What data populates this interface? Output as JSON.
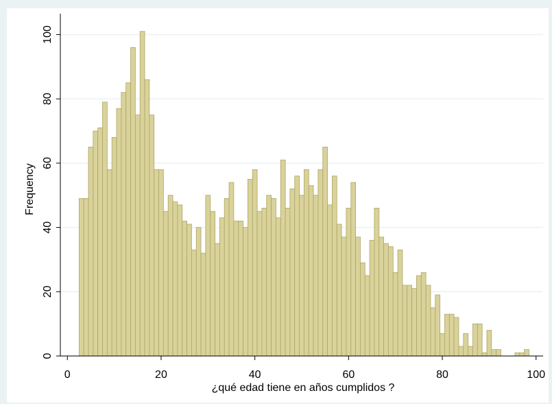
{
  "chart_data": {
    "type": "histogram",
    "xlabel": "¿qué edad tiene en años cumplidos ?",
    "ylabel": "Frequency",
    "bins": [
      2.5,
      3.5,
      4.5,
      5.5,
      6.5,
      7.5,
      8.5,
      9.5,
      10.5,
      11.5,
      12.5,
      13.5,
      14.5,
      15.5,
      16.5,
      17.5,
      18.5,
      19.5,
      20.5,
      21.5,
      22.5,
      23.5,
      24.5,
      25.5,
      26.5,
      27.5,
      28.5,
      29.5,
      30.5,
      31.5,
      32.5,
      33.5,
      34.5,
      35.5,
      36.5,
      37.5,
      38.5,
      39.5,
      40.5,
      41.5,
      42.5,
      43.5,
      44.5,
      45.5,
      46.5,
      47.5,
      48.5,
      49.5,
      50.5,
      51.5,
      52.5,
      53.5,
      54.5,
      55.5,
      56.5,
      57.5,
      58.5,
      59.5,
      60.5,
      61.5,
      62.5,
      63.5,
      64.5,
      65.5,
      66.5,
      67.5,
      68.5,
      69.5,
      70.5,
      71.5,
      72.5,
      73.5,
      74.5,
      75.5,
      76.5,
      77.5,
      78.5,
      79.5,
      80.5,
      81.5,
      82.5,
      83.5,
      84.5,
      85.5,
      86.5,
      87.5,
      88.5,
      89.5,
      90.5,
      91.5,
      92.5,
      93.5,
      94.5,
      95.5,
      96.5,
      97.5,
      98.5
    ],
    "values": [
      49,
      49,
      65,
      70,
      71,
      79,
      58,
      68,
      77,
      82,
      85,
      96,
      75,
      101,
      86,
      75,
      58,
      58,
      45,
      50,
      48,
      47,
      42,
      41,
      33,
      40,
      32,
      50,
      45,
      35,
      43,
      49,
      54,
      42,
      42,
      40,
      55,
      58,
      45,
      46,
      50,
      49,
      43,
      61,
      46,
      52,
      56,
      50,
      58,
      53,
      50,
      58,
      65,
      47,
      56,
      41,
      37,
      46,
      54,
      37,
      29,
      25,
      36,
      46,
      37,
      35,
      34,
      26,
      33,
      22,
      22,
      21,
      25,
      26,
      22,
      15,
      19,
      7,
      13,
      13,
      12,
      3,
      7,
      3,
      10,
      10,
      1,
      8,
      2,
      2,
      0,
      0,
      0,
      1,
      1,
      2
    ],
    "color": "#d9d29a",
    "edgecolor": "#aea565",
    "xlim": [
      -1.5,
      101.5
    ],
    "ylim": [
      0,
      106.5
    ],
    "xticks": [
      0,
      20,
      40,
      60,
      80,
      100
    ],
    "yticks": [
      0,
      20,
      40,
      60,
      80,
      100
    ],
    "grid": true
  }
}
